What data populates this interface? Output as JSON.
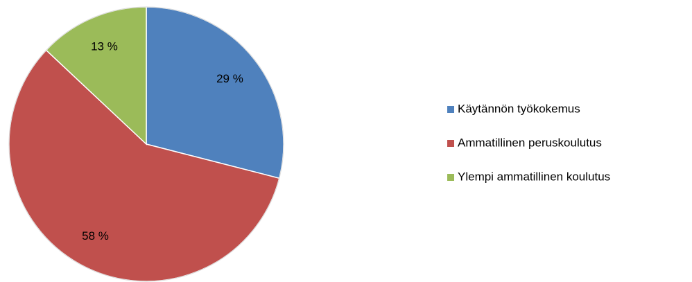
{
  "chart_data": {
    "type": "pie",
    "categories": [
      "Käytännön työkokemus",
      "Ammatillinen peruskoulutus",
      "Ylempi ammatillinen koulutus"
    ],
    "values": [
      29,
      58,
      13
    ],
    "value_labels": [
      "29 %",
      "58 %",
      "13 %"
    ],
    "colors": [
      "#4f81bd",
      "#c0504d",
      "#9bbb59"
    ],
    "legend": "right"
  }
}
